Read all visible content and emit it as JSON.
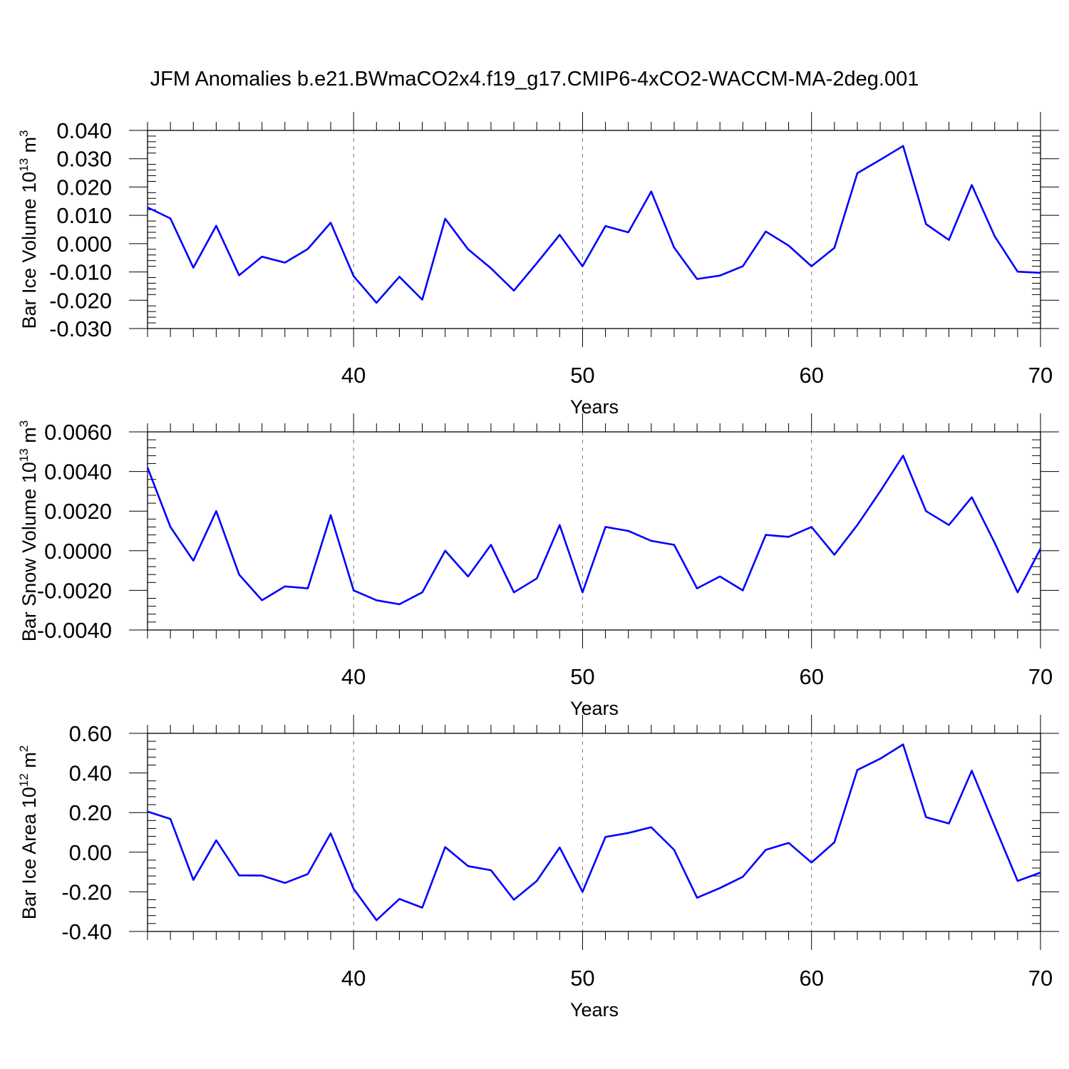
{
  "title": "JFM Anomalies b.e21.BWmaCO2x4.f19_g17.CMIP6-4xCO2-WACCM-MA-2deg.001",
  "line_color": "#0000ff",
  "grid_color": "#777777",
  "chart_data": [
    {
      "type": "line",
      "ylabel": {
        "text": "Bar Ice Volume 10",
        "sup": "13",
        "unit": " m",
        "unit_sup": "3"
      },
      "xlabel": "Years",
      "xlim": [
        31,
        70
      ],
      "ylim": [
        -0.03,
        0.04
      ],
      "xticks": [
        40,
        50,
        60,
        70
      ],
      "xtick_labels": [
        "40",
        "50",
        "60",
        "70"
      ],
      "yticks": [
        0.04,
        0.03,
        0.02,
        0.01,
        0.0,
        -0.01,
        -0.02,
        -0.03
      ],
      "ytick_labels": [
        "0.040",
        "0.030",
        "0.020",
        "0.010",
        "0.000",
        "-0.010",
        "-0.020",
        "-0.030"
      ],
      "grid": "vertical dashed at major x ticks",
      "x": [
        31,
        32,
        33,
        34,
        35,
        36,
        37,
        38,
        39,
        40,
        41,
        42,
        43,
        44,
        45,
        46,
        47,
        48,
        49,
        50,
        51,
        52,
        53,
        54,
        55,
        56,
        57,
        58,
        59,
        60,
        61,
        62,
        63,
        64,
        65,
        66,
        67,
        68,
        69,
        70
      ],
      "y": [
        0.0128,
        0.0089,
        -0.0085,
        0.0063,
        -0.0112,
        -0.0046,
        -0.0067,
        -0.0019,
        0.0074,
        -0.0115,
        -0.0209,
        -0.0117,
        -0.0198,
        0.0088,
        -0.002,
        -0.0087,
        -0.0166,
        -0.0069,
        0.0031,
        -0.008,
        0.0062,
        0.004,
        0.0184,
        -0.0014,
        -0.0125,
        -0.0113,
        -0.008,
        0.0043,
        -0.0007,
        -0.008,
        -0.0015,
        0.0249,
        0.0296,
        0.0345,
        0.0069,
        0.0013,
        0.0207,
        0.0026,
        -0.0099,
        -0.0103
      ]
    },
    {
      "type": "line",
      "ylabel": {
        "text": "Bar Snow Volume 10",
        "sup": "13",
        "unit": " m",
        "unit_sup": "3"
      },
      "xlabel": "Years",
      "xlim": [
        31,
        70
      ],
      "ylim": [
        -0.004,
        0.006
      ],
      "xticks": [
        40,
        50,
        60,
        70
      ],
      "xtick_labels": [
        "40",
        "50",
        "60",
        "70"
      ],
      "yticks": [
        0.006,
        0.004,
        0.002,
        0.0,
        -0.002,
        -0.004
      ],
      "ytick_labels": [
        "0.0060",
        "0.0040",
        "0.0020",
        "0.0000",
        "-0.0020",
        "-0.0040"
      ],
      "grid": "vertical dashed at major x ticks",
      "x": [
        31,
        32,
        33,
        34,
        35,
        36,
        37,
        38,
        39,
        40,
        41,
        42,
        43,
        44,
        45,
        46,
        47,
        48,
        49,
        50,
        51,
        52,
        53,
        54,
        55,
        56,
        57,
        58,
        59,
        60,
        61,
        62,
        63,
        64,
        65,
        66,
        67,
        68,
        69,
        70
      ],
      "y": [
        0.0042,
        0.0012,
        -0.0005,
        0.002,
        -0.0012,
        -0.0025,
        -0.0018,
        -0.0019,
        0.0018,
        -0.002,
        -0.0025,
        -0.0027,
        -0.0021,
        0.0,
        -0.0013,
        0.0003,
        -0.0021,
        -0.0014,
        0.0013,
        -0.0021,
        0.0012,
        0.001,
        0.0005,
        0.0003,
        -0.0019,
        -0.0013,
        -0.002,
        0.0008,
        0.0007,
        0.0012,
        -0.0002,
        0.0013,
        0.003,
        0.0048,
        0.002,
        0.0013,
        0.0027,
        0.0004,
        -0.0021,
        0.0001
      ]
    },
    {
      "type": "line",
      "ylabel": {
        "text": "Bar Ice Area 10",
        "sup": "12",
        "unit": " m",
        "unit_sup": "2"
      },
      "xlabel": "Years",
      "xlim": [
        31,
        70
      ],
      "ylim": [
        -0.4,
        0.6
      ],
      "xticks": [
        40,
        50,
        60,
        70
      ],
      "xtick_labels": [
        "40",
        "50",
        "60",
        "70"
      ],
      "yticks": [
        0.6,
        0.4,
        0.2,
        0.0,
        -0.2,
        -0.4
      ],
      "ytick_labels": [
        "0.60",
        "0.40",
        "0.20",
        "0.00",
        "-0.20",
        "-0.40"
      ],
      "grid": "vertical dashed at major x ticks",
      "x": [
        31,
        32,
        33,
        34,
        35,
        36,
        37,
        38,
        39,
        40,
        41,
        42,
        43,
        44,
        45,
        46,
        47,
        48,
        49,
        50,
        51,
        52,
        53,
        54,
        55,
        56,
        57,
        58,
        59,
        60,
        61,
        62,
        63,
        64,
        65,
        66,
        67,
        68,
        69,
        70
      ],
      "y": [
        0.205,
        0.168,
        -0.14,
        0.06,
        -0.117,
        -0.118,
        -0.155,
        -0.11,
        0.095,
        -0.185,
        -0.343,
        -0.236,
        -0.28,
        0.026,
        -0.07,
        -0.091,
        -0.24,
        -0.145,
        0.024,
        -0.2,
        0.077,
        0.097,
        0.126,
        0.012,
        -0.23,
        -0.181,
        -0.124,
        0.012,
        0.047,
        -0.052,
        0.05,
        0.415,
        0.472,
        0.544,
        0.177,
        0.145,
        0.411,
        0.132,
        -0.145,
        -0.103
      ]
    }
  ]
}
